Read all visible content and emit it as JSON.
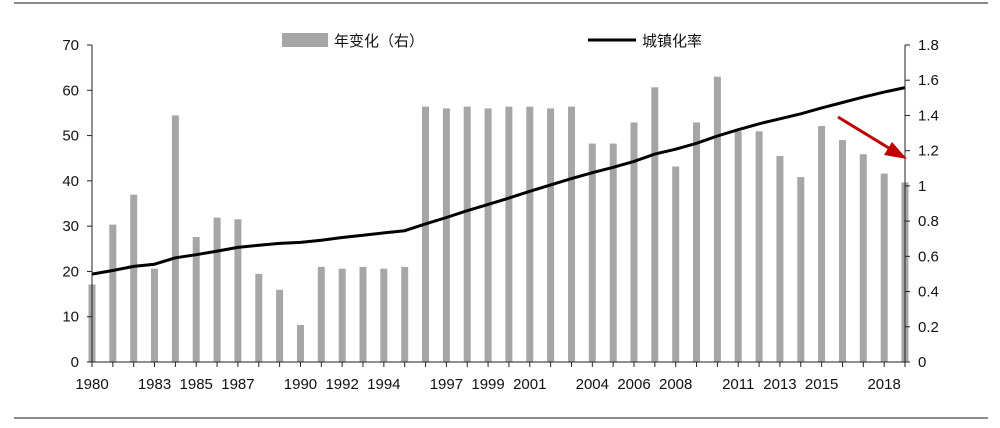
{
  "chart_data": {
    "type": "bar+line",
    "title": "",
    "xlabel": "",
    "ylabel_left": "",
    "ylabel_right": "",
    "x": [
      1980,
      1981,
      1982,
      1983,
      1984,
      1985,
      1986,
      1987,
      1988,
      1989,
      1990,
      1991,
      1992,
      1993,
      1994,
      1995,
      1996,
      1997,
      1998,
      1999,
      2000,
      2001,
      2002,
      2003,
      2004,
      2005,
      2006,
      2007,
      2008,
      2009,
      2010,
      2011,
      2012,
      2013,
      2014,
      2015,
      2016,
      2017,
      2018,
      2019
    ],
    "x_tick_labels": [
      "1980",
      "1983",
      "1985",
      "1987",
      "1990",
      "1992",
      "1994",
      "1997",
      "1999",
      "2001",
      "2004",
      "2006",
      "2008",
      "2011",
      "2013",
      "2015",
      "2018"
    ],
    "series": [
      {
        "name": "年变化（右）",
        "type": "bar",
        "axis": "right",
        "color": "#a6a6a6",
        "values": [
          0.44,
          0.78,
          0.95,
          0.53,
          1.4,
          0.71,
          0.82,
          0.81,
          0.5,
          0.41,
          0.21,
          0.54,
          0.53,
          0.54,
          0.53,
          0.54,
          1.45,
          1.44,
          1.45,
          1.44,
          1.45,
          1.45,
          1.44,
          1.45,
          1.24,
          1.24,
          1.36,
          1.56,
          1.11,
          1.36,
          1.62,
          1.31,
          1.31,
          1.17,
          1.05,
          1.34,
          1.26,
          1.18,
          1.07,
          1.02
        ]
      },
      {
        "name": "城镇化率",
        "type": "line",
        "axis": "left",
        "color": "#000000",
        "values": [
          19.4,
          20.2,
          21.1,
          21.6,
          23.0,
          23.7,
          24.5,
          25.3,
          25.8,
          26.2,
          26.4,
          26.9,
          27.5,
          28.0,
          28.5,
          29.0,
          30.5,
          31.9,
          33.4,
          34.8,
          36.2,
          37.7,
          39.1,
          40.5,
          41.8,
          43.0,
          44.3,
          45.9,
          47.0,
          48.3,
          49.9,
          51.3,
          52.6,
          53.7,
          54.8,
          56.1,
          57.3,
          58.5,
          59.6,
          60.6
        ]
      }
    ],
    "y_left": {
      "ylim": [
        0,
        70
      ],
      "ticks": [
        "0",
        "10",
        "20",
        "30",
        "40",
        "50",
        "60",
        "70"
      ]
    },
    "y_right": {
      "ylim": [
        0,
        1.8
      ],
      "ticks": [
        "0",
        "0.2",
        "0.4",
        "0.6",
        "0.8",
        "1",
        "1.2",
        "1.4",
        "1.6",
        "1.8"
      ]
    },
    "grid": false,
    "legend_position": "top",
    "annotation": {
      "type": "arrow",
      "color": "#c00000",
      "meaning": "downward trend"
    }
  }
}
